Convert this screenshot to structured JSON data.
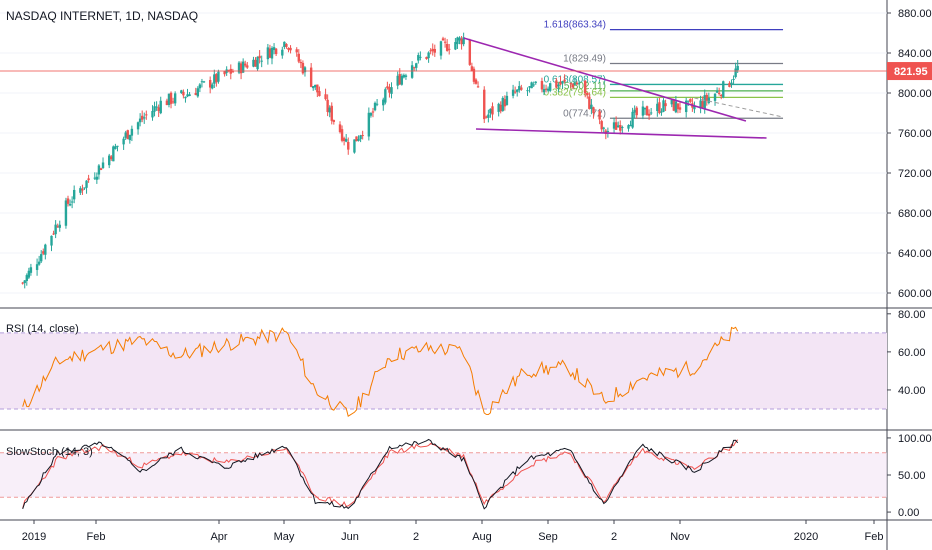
{
  "chart_data": {
    "type": "candlestick",
    "title": "NASDAQ INTERNET, 1D, NASDAQ",
    "last_price": "821.95",
    "colors": {
      "up": "#26a69a",
      "down": "#ef5350",
      "trendline": "#9c27b0",
      "rsi_line": "#f57c00",
      "rsi_band": "#f3e5f5",
      "stoch_k": "#131722",
      "stoch_d": "#ef5350",
      "price_line": "#ef5350"
    },
    "x_axis": {
      "labels": [
        "2019",
        "Feb",
        "Apr",
        "May",
        "Jun",
        "2",
        "Aug",
        "Sep",
        "2",
        "Nov",
        "2020",
        "Feb"
      ]
    },
    "price_axis": {
      "ylim": [
        588,
        888
      ],
      "ticks": [
        "880.00",
        "840.00",
        "800.00",
        "760.00",
        "720.00",
        "680.00",
        "640.00",
        "600.00"
      ]
    },
    "fib_levels": [
      {
        "label": "1.618(863.34)",
        "value": 863.34,
        "color": "#3f3fbf"
      },
      {
        "label": "1(829.49)",
        "value": 829.49,
        "color": "#787b86"
      },
      {
        "label": "0.618(808.57)",
        "value": 808.57,
        "color": "#26a69a"
      },
      {
        "label": "0.5(802.11)",
        "value": 802.11,
        "color": "#4caf50"
      },
      {
        "label": "0.382(795.64)",
        "value": 795.64,
        "color": "#8bc34a"
      },
      {
        "label": "0(774.72)",
        "value": 774.72,
        "color": "#787b86"
      }
    ],
    "price_series": [
      {
        "date": "2018-12-24",
        "close": 610
      },
      {
        "date": "2019-01-02",
        "close": 640
      },
      {
        "date": "2019-01-15",
        "close": 690
      },
      {
        "date": "2019-02-01",
        "close": 730
      },
      {
        "date": "2019-02-15",
        "close": 765
      },
      {
        "date": "2019-03-01",
        "close": 790
      },
      {
        "date": "2019-03-15",
        "close": 800
      },
      {
        "date": "2019-04-01",
        "close": 818
      },
      {
        "date": "2019-04-15",
        "close": 832
      },
      {
        "date": "2019-05-01",
        "close": 852
      },
      {
        "date": "2019-05-15",
        "close": 805
      },
      {
        "date": "2019-06-01",
        "close": 745
      },
      {
        "date": "2019-06-15",
        "close": 790
      },
      {
        "date": "2019-07-01",
        "close": 830
      },
      {
        "date": "2019-07-15",
        "close": 845
      },
      {
        "date": "2019-07-26",
        "close": 855
      },
      {
        "date": "2019-08-05",
        "close": 775
      },
      {
        "date": "2019-08-20",
        "close": 800
      },
      {
        "date": "2019-09-05",
        "close": 808
      },
      {
        "date": "2019-09-20",
        "close": 810
      },
      {
        "date": "2019-10-02",
        "close": 760
      },
      {
        "date": "2019-10-15",
        "close": 775
      },
      {
        "date": "2019-11-01",
        "close": 788
      },
      {
        "date": "2019-11-15",
        "close": 785
      },
      {
        "date": "2019-12-01",
        "close": 808
      },
      {
        "date": "2019-12-06",
        "close": 825
      }
    ],
    "rsi_panel": {
      "title": "RSI (14, close)",
      "ylim": [
        20,
        82
      ],
      "band": [
        30,
        70
      ],
      "ticks": [
        "80.00",
        "60.00",
        "40.00"
      ],
      "series": [
        {
          "date": "2018-12-24",
          "value": 30
        },
        {
          "date": "2019-01-10",
          "value": 55
        },
        {
          "date": "2019-02-01",
          "value": 62
        },
        {
          "date": "2019-02-20",
          "value": 66
        },
        {
          "date": "2019-03-10",
          "value": 58
        },
        {
          "date": "2019-04-01",
          "value": 64
        },
        {
          "date": "2019-05-01",
          "value": 70
        },
        {
          "date": "2019-05-15",
          "value": 40
        },
        {
          "date": "2019-06-01",
          "value": 26
        },
        {
          "date": "2019-06-20",
          "value": 58
        },
        {
          "date": "2019-07-10",
          "value": 62
        },
        {
          "date": "2019-07-26",
          "value": 60
        },
        {
          "date": "2019-08-05",
          "value": 28
        },
        {
          "date": "2019-08-25",
          "value": 50
        },
        {
          "date": "2019-09-15",
          "value": 52
        },
        {
          "date": "2019-10-02",
          "value": 34
        },
        {
          "date": "2019-10-20",
          "value": 46
        },
        {
          "date": "2019-11-15",
          "value": 52
        },
        {
          "date": "2019-12-06",
          "value": 72
        }
      ]
    },
    "stoch_panel": {
      "title": "SlowStoch (14, 3)",
      "ylim": [
        -8,
        108
      ],
      "band": [
        20,
        80
      ],
      "ticks": [
        "100.00",
        "50.00",
        "0.00"
      ],
      "k_series": [
        {
          "date": "2018-12-24",
          "value": 5
        },
        {
          "date": "2019-01-10",
          "value": 80
        },
        {
          "date": "2019-02-01",
          "value": 92
        },
        {
          "date": "2019-02-20",
          "value": 55
        },
        {
          "date": "2019-03-10",
          "value": 85
        },
        {
          "date": "2019-04-01",
          "value": 60
        },
        {
          "date": "2019-05-01",
          "value": 90
        },
        {
          "date": "2019-05-15",
          "value": 15
        },
        {
          "date": "2019-06-01",
          "value": 5
        },
        {
          "date": "2019-06-20",
          "value": 88
        },
        {
          "date": "2019-07-10",
          "value": 95
        },
        {
          "date": "2019-07-26",
          "value": 70
        },
        {
          "date": "2019-08-05",
          "value": 8
        },
        {
          "date": "2019-08-25",
          "value": 70
        },
        {
          "date": "2019-09-15",
          "value": 85
        },
        {
          "date": "2019-10-02",
          "value": 10
        },
        {
          "date": "2019-10-20",
          "value": 90
        },
        {
          "date": "2019-11-15",
          "value": 55
        },
        {
          "date": "2019-12-06",
          "value": 97
        }
      ],
      "d_series": [
        {
          "date": "2018-12-24",
          "value": 8
        },
        {
          "date": "2019-01-10",
          "value": 72
        },
        {
          "date": "2019-02-01",
          "value": 88
        },
        {
          "date": "2019-02-20",
          "value": 62
        },
        {
          "date": "2019-03-10",
          "value": 80
        },
        {
          "date": "2019-04-01",
          "value": 66
        },
        {
          "date": "2019-05-01",
          "value": 86
        },
        {
          "date": "2019-05-15",
          "value": 22
        },
        {
          "date": "2019-06-01",
          "value": 8
        },
        {
          "date": "2019-06-20",
          "value": 80
        },
        {
          "date": "2019-07-10",
          "value": 92
        },
        {
          "date": "2019-07-26",
          "value": 75
        },
        {
          "date": "2019-08-05",
          "value": 12
        },
        {
          "date": "2019-08-25",
          "value": 62
        },
        {
          "date": "2019-09-15",
          "value": 82
        },
        {
          "date": "2019-10-02",
          "value": 15
        },
        {
          "date": "2019-10-20",
          "value": 84
        },
        {
          "date": "2019-11-15",
          "value": 58
        },
        {
          "date": "2019-12-06",
          "value": 94
        }
      ]
    },
    "trendlines": [
      {
        "from": {
          "date": "2019-07-26",
          "value": 855
        },
        "to": {
          "date": "2019-12-10",
          "value": 772
        }
      },
      {
        "from": {
          "date": "2019-08-01",
          "value": 764
        },
        "to": {
          "date": "2019-12-20",
          "value": 755
        }
      }
    ]
  }
}
